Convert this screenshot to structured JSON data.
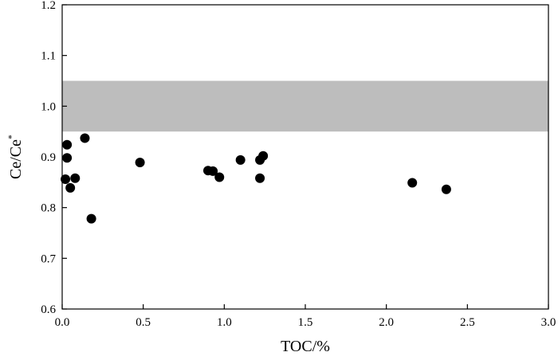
{
  "chart_data": {
    "type": "scatter",
    "xlabel": "TOC/%",
    "ylabel": "Ce/Ce",
    "ylabel_superscript": "*",
    "xlim": [
      0.0,
      3.0
    ],
    "ylim": [
      0.6,
      1.2
    ],
    "x_ticks": [
      "0.0",
      "0.5",
      "1.0",
      "1.5",
      "2.0",
      "2.5",
      "3.0"
    ],
    "y_ticks": [
      "0.6",
      "0.7",
      "0.8",
      "0.9",
      "1.0",
      "1.1",
      "1.2"
    ],
    "grid": false,
    "band": {
      "y_from": 0.95,
      "y_to": 1.05,
      "color": "#bdbdbd"
    },
    "marker_color": "#000000",
    "points": [
      {
        "x": 0.02,
        "y": 0.856
      },
      {
        "x": 0.03,
        "y": 0.924
      },
      {
        "x": 0.03,
        "y": 0.898
      },
      {
        "x": 0.05,
        "y": 0.839
      },
      {
        "x": 0.08,
        "y": 0.858
      },
      {
        "x": 0.14,
        "y": 0.937
      },
      {
        "x": 0.18,
        "y": 0.778
      },
      {
        "x": 0.48,
        "y": 0.889
      },
      {
        "x": 0.9,
        "y": 0.873
      },
      {
        "x": 0.93,
        "y": 0.872
      },
      {
        "x": 0.97,
        "y": 0.86
      },
      {
        "x": 1.1,
        "y": 0.894
      },
      {
        "x": 1.22,
        "y": 0.894
      },
      {
        "x": 1.22,
        "y": 0.858
      },
      {
        "x": 1.24,
        "y": 0.902
      },
      {
        "x": 2.16,
        "y": 0.849
      },
      {
        "x": 2.37,
        "y": 0.836
      }
    ]
  }
}
